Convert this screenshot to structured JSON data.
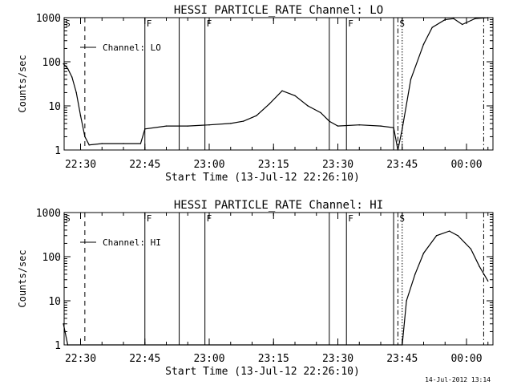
{
  "footer": {
    "timestamp": "14-Jul-2012 13:14"
  },
  "chart_data": [
    {
      "type": "line",
      "title": "HESSI PARTICLE_RATE Channel: LO",
      "xlabel": "Start Time (13-Jul-12 22:26:10)",
      "ylabel": "Counts/sec",
      "y_scale": "log",
      "ylim": [
        1,
        1000
      ],
      "xlim_minutes_after_22_26_10": [
        0,
        100
      ],
      "xticks": [
        "22:30",
        "22:45",
        "23:00",
        "23:15",
        "23:30",
        "23:45",
        "00:00"
      ],
      "yticks": [
        "1",
        "10",
        "100",
        "1000"
      ],
      "legend": "Channel: LO",
      "flags": [
        "S",
        "F",
        "F",
        "F",
        "S"
      ],
      "series": [
        {
          "name": "Channel: LO",
          "x": [
            "22:26",
            "22:27",
            "22:28",
            "22:29",
            "22:30",
            "22:31",
            "22:32",
            "22:35",
            "22:40",
            "22:44",
            "22:45",
            "22:50",
            "22:55",
            "23:00",
            "23:05",
            "23:08",
            "23:11",
            "23:14",
            "23:17",
            "23:20",
            "23:23",
            "23:26",
            "23:28",
            "23:30",
            "23:35",
            "23:40",
            "23:43",
            "23:44",
            "23:45",
            "23:47",
            "23:50",
            "23:52",
            "23:55",
            "23:57",
            "23:59",
            "00:02",
            "00:05"
          ],
          "values": [
            90,
            70,
            45,
            20,
            6,
            2,
            1.3,
            1.4,
            1.4,
            1.4,
            3,
            3.5,
            3.5,
            3.7,
            4,
            4.5,
            6,
            11,
            22,
            17,
            10,
            7,
            4.5,
            3.5,
            3.7,
            3.5,
            3.2,
            1,
            3,
            40,
            250,
            600,
            900,
            950,
            700,
            950,
            1000
          ]
        }
      ]
    },
    {
      "type": "line",
      "title": "HESSI PARTICLE_RATE Channel: HI",
      "xlabel": "Start Time (13-Jul-12 22:26:10)",
      "ylabel": "Counts/sec",
      "y_scale": "log",
      "ylim": [
        1,
        1000
      ],
      "xticks": [
        "22:30",
        "22:45",
        "23:00",
        "23:15",
        "23:30",
        "23:45",
        "00:00"
      ],
      "yticks": [
        "1",
        "10",
        "100",
        "1000"
      ],
      "legend": "Channel: HI",
      "flags": [
        "S",
        "F",
        "F",
        "F",
        "S"
      ],
      "series": [
        {
          "name": "Channel: HI",
          "x": [
            "22:26",
            "22:27",
            "23:45",
            "23:46",
            "23:48",
            "23:50",
            "23:53",
            "23:56",
            "23:58",
            "00:01",
            "00:03",
            "00:05"
          ],
          "values": [
            3,
            1,
            1,
            10,
            40,
            120,
            300,
            380,
            300,
            150,
            60,
            28
          ]
        }
      ]
    }
  ]
}
